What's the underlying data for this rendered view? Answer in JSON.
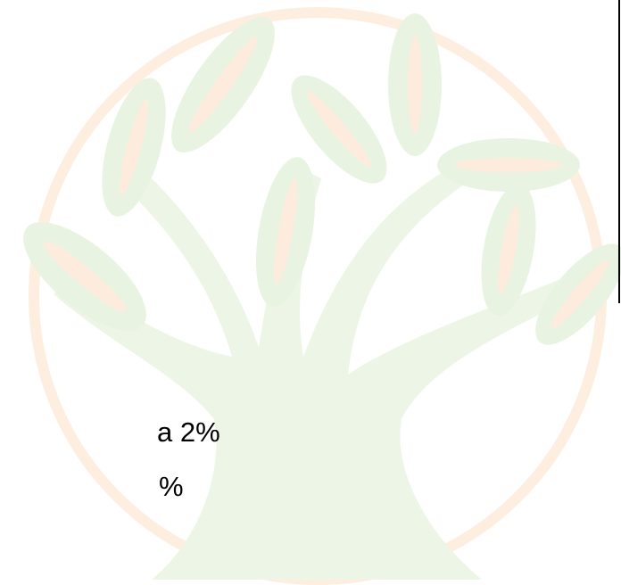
{
  "lines": [
    "a 2%",
    "%"
  ]
}
